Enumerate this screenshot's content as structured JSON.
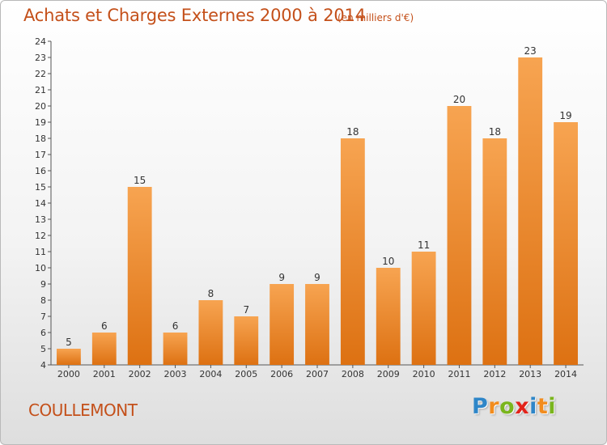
{
  "chart_data": {
    "type": "bar",
    "title": "Achats et Charges Externes 2000 à 2014",
    "subtitle": "(en milliers d'€)",
    "categories": [
      "2000",
      "2001",
      "2002",
      "2003",
      "2004",
      "2005",
      "2006",
      "2007",
      "2008",
      "2009",
      "2010",
      "2011",
      "2012",
      "2013",
      "2014"
    ],
    "values": [
      5,
      6,
      15,
      6,
      8,
      7,
      9,
      9,
      18,
      10,
      11,
      20,
      18,
      23,
      19
    ],
    "ylim": [
      4,
      24
    ],
    "yticks": [
      4,
      5,
      6,
      7,
      8,
      9,
      10,
      11,
      12,
      13,
      14,
      15,
      16,
      17,
      18,
      19,
      20,
      21,
      22,
      23,
      24
    ],
    "grid": false,
    "bar_color": "#f0903a"
  },
  "footer": {
    "commune": "COULLEMONT",
    "logo_letters": [
      "P",
      "r",
      "o",
      "x",
      "i",
      "t",
      "i"
    ],
    "logo_colors": [
      "#2e86c8",
      "#f28c1e",
      "#7ab51d",
      "#e2231a",
      "#2e86c8",
      "#f28c1e",
      "#7ab51d"
    ]
  }
}
